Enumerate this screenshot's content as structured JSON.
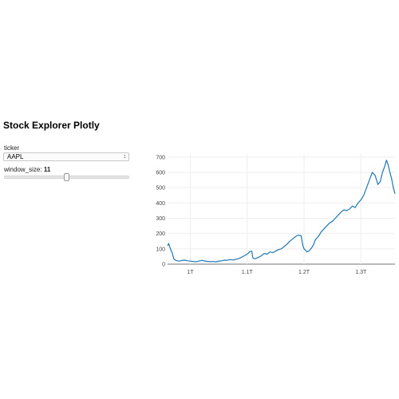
{
  "app": {
    "title": "Stock Explorer Plotly"
  },
  "controls": {
    "ticker_label": "ticker",
    "ticker_value": "AAPL",
    "window_label": "window_size: ",
    "window_value": "11",
    "window_fraction": 0.5
  },
  "chart_data": {
    "type": "line",
    "title": "",
    "xlabel": "",
    "ylabel": "",
    "grid": true,
    "ylim": [
      0,
      720
    ],
    "xlim": [
      0.96,
      1.36
    ],
    "x_ticks": [
      {
        "value": 1.0,
        "label": "1T"
      },
      {
        "value": 1.1,
        "label": "1.1T"
      },
      {
        "value": 1.2,
        "label": "1.2T"
      },
      {
        "value": 1.3,
        "label": "1.3T"
      }
    ],
    "y_ticks": [
      0,
      100,
      200,
      300,
      400,
      500,
      600,
      700
    ],
    "colors": {
      "line": "#1f77b4",
      "grid": "#eeeeee"
    },
    "series": [
      {
        "name": "",
        "x": [
          0.96,
          0.962,
          0.964,
          0.966,
          0.968,
          0.971,
          0.974,
          0.977,
          0.98,
          0.985,
          0.99,
          0.995,
          1.0,
          1.005,
          1.01,
          1.015,
          1.02,
          1.025,
          1.03,
          1.035,
          1.04,
          1.045,
          1.05,
          1.055,
          1.06,
          1.065,
          1.07,
          1.075,
          1.08,
          1.085,
          1.09,
          1.095,
          1.1,
          1.104,
          1.108,
          1.11,
          1.113,
          1.116,
          1.12,
          1.125,
          1.13,
          1.135,
          1.14,
          1.145,
          1.15,
          1.155,
          1.16,
          1.165,
          1.17,
          1.175,
          1.18,
          1.185,
          1.19,
          1.195,
          1.198,
          1.2,
          1.203,
          1.205,
          1.208,
          1.211,
          1.214,
          1.217,
          1.22,
          1.225,
          1.23,
          1.235,
          1.24,
          1.245,
          1.25,
          1.255,
          1.26,
          1.265,
          1.27,
          1.275,
          1.28,
          1.285,
          1.29,
          1.295,
          1.3,
          1.305,
          1.31,
          1.315,
          1.32,
          1.325,
          1.33,
          1.334,
          1.338,
          1.342,
          1.345,
          1.348,
          1.351,
          1.354,
          1.357,
          1.36
        ],
        "values": [
          120,
          135,
          110,
          90,
          75,
          35,
          25,
          22,
          20,
          24,
          26,
          22,
          20,
          17,
          15,
          20,
          25,
          21,
          18,
          16,
          17,
          15,
          19,
          22,
          26,
          25,
          30,
          27,
          32,
          36,
          45,
          55,
          65,
          80,
          85,
          40,
          35,
          38,
          45,
          55,
          70,
          65,
          80,
          75,
          85,
          95,
          100,
          115,
          130,
          150,
          165,
          180,
          190,
          185,
          120,
          100,
          90,
          80,
          85,
          95,
          110,
          130,
          160,
          180,
          210,
          230,
          250,
          270,
          280,
          300,
          320,
          340,
          355,
          350,
          360,
          380,
          370,
          400,
          420,
          450,
          500,
          550,
          600,
          580,
          520,
          540,
          600,
          640,
          680,
          650,
          600,
          560,
          500,
          460
        ]
      }
    ]
  }
}
